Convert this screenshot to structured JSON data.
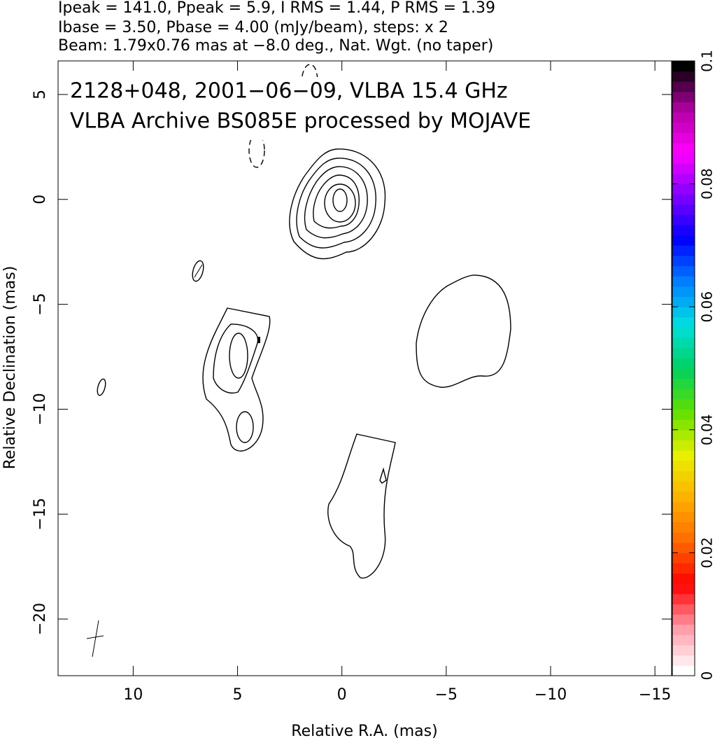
{
  "chart_data": {
    "type": "contour",
    "header_lines": [
      "Ipeak = 141.0, Ppeak = 5.9, I RMS = 1.44, P RMS = 1.39",
      "Ibase = 3.50, Pbase = 4.00 (mJy/beam), steps: x 2",
      "Beam: 1.79x0.76 mas at −8.0 deg., Nat. Wgt. (no taper)"
    ],
    "annotations": [
      "2128+048, 2001−06−09, VLBA 15.4 GHz",
      "VLBA Archive BS085E processed by MOJAVE"
    ],
    "xlabel": "Relative R.A. (mas)",
    "ylabel": "Relative Declination (mas)",
    "xlim": [
      13.6,
      -15.8
    ],
    "ylim": [
      -22.7,
      6.6
    ],
    "xticks": [
      10,
      5,
      0,
      {
        "value": -5,
        "label": "−5"
      },
      {
        "value": -10,
        "label": "−10"
      },
      {
        "value": -15,
        "label": "−15"
      }
    ],
    "yticks": [
      5,
      0,
      {
        "value": -5,
        "label": "−5"
      },
      {
        "value": -10,
        "label": "−10"
      },
      {
        "value": -15,
        "label": "−15"
      },
      {
        "value": -20,
        "label": "−20"
      }
    ],
    "colorbar": {
      "lim": [
        0,
        0.1
      ],
      "ticks": [
        0,
        0.02,
        0.04,
        0.06,
        0.08,
        0.1
      ],
      "colors": [
        "#ffffff",
        "#ff9aa8",
        "#ff0000",
        "#ff6a00",
        "#ffb000",
        "#e8f000",
        "#60e000",
        "#00d060",
        "#00e0e0",
        "#0080ff",
        "#0000ff",
        "#8000ff",
        "#ff00ff",
        "#b000a0",
        "#000000"
      ]
    }
  }
}
